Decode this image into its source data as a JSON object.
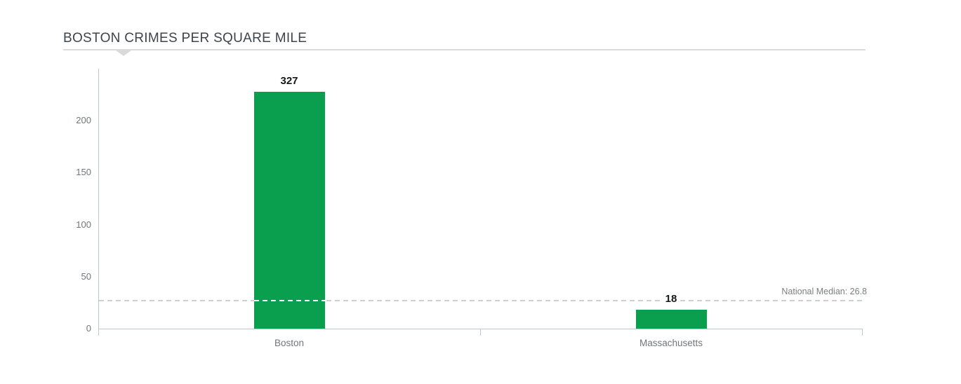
{
  "chart_data": {
    "type": "bar",
    "title": "BOSTON CRIMES PER SQUARE MILE",
    "categories": [
      "Boston",
      "Massachusetts"
    ],
    "values": [
      327,
      18
    ],
    "value_labels": [
      "327",
      "18"
    ],
    "displayed_values": [
      228,
      18
    ],
    "yticks": [
      0,
      50,
      100,
      150,
      200
    ],
    "ylim": [
      0,
      250
    ],
    "grid": false,
    "legend": "none",
    "bar_color": "#0a9f4e",
    "axis_color": "#bdc9cb",
    "reference_line": {
      "value": 26.8,
      "label": "National Median: 26.8",
      "style": "dashed"
    }
  }
}
